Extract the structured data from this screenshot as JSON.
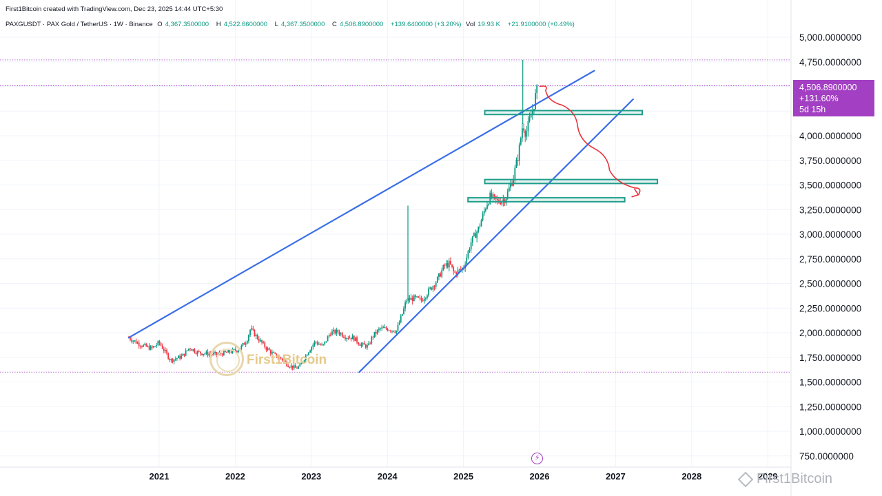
{
  "header": {
    "credit": "First1Bitcoin created with TradingView.com, Dec 23, 2025 14:44 UTC+5:30",
    "symbol": "PAXGUSDT · PAX Gold / TetherUS · 1W · Binance",
    "open_label": "O",
    "open": "4,367.3500000",
    "high_label": "H",
    "high": "4,522.6600000",
    "low_label": "L",
    "low": "4,367.3500000",
    "close_label": "C",
    "close": "4,506.8900000",
    "change": "+139.6400000 (+3.20%)",
    "vol_label": "Vol",
    "vol": "19.93 K",
    "vol_change": "+21.9100000 (+0.49%)"
  },
  "price_tag": {
    "price": "4,506.8900000",
    "change_pct": "+131.60%",
    "countdown": "5d 15h"
  },
  "watermark": {
    "center": "First1Bitcoin",
    "corner": "First1Bitcoin"
  },
  "icons": {
    "bolt": "lightning-icon",
    "logo": "coin-logo-icon",
    "corner": "diamond-icon"
  },
  "colors": {
    "up": "#089981",
    "down": "#f23645",
    "trendline": "#3a6ee8",
    "zone": "#1f9d8a",
    "projection": "#e8313a",
    "price_line": "#a23fc2"
  },
  "chart_data": {
    "type": "candlestick",
    "timeframe": "1W",
    "ylim": [
      650,
      5200
    ],
    "y_ticks": [
      "5,000.0000000",
      "4,750.0000000",
      "4,500.0000000",
      "4,250.0000000",
      "4,000.0000000",
      "3,750.0000000",
      "3,500.0000000",
      "3,250.0000000",
      "3,000.0000000",
      "2,750.0000000",
      "2,500.0000000",
      "2,250.0000000",
      "2,000.0000000",
      "1,750.0000000",
      "1,500.0000000",
      "1,250.0000000",
      "1,000.0000000",
      "750.0000000"
    ],
    "y_tick_values": [
      5000,
      4750,
      4500,
      4250,
      4000,
      3750,
      3500,
      3250,
      3000,
      2750,
      2500,
      2250,
      2000,
      1750,
      1500,
      1250,
      1000,
      750
    ],
    "x_ticks": [
      "2021",
      "2022",
      "2023",
      "2024",
      "2025",
      "2026",
      "2027",
      "2028",
      "2029"
    ],
    "x_tick_values": [
      2021,
      2022,
      2023,
      2024,
      2025,
      2026,
      2027,
      2028,
      2029
    ],
    "anchors": [
      [
        2020.6,
        1950
      ],
      [
        2020.75,
        1880
      ],
      [
        2020.9,
        1840
      ],
      [
        2021.0,
        1900
      ],
      [
        2021.15,
        1720
      ],
      [
        2021.3,
        1760
      ],
      [
        2021.4,
        1850
      ],
      [
        2021.5,
        1800
      ],
      [
        2021.6,
        1790
      ],
      [
        2021.75,
        1780
      ],
      [
        2021.9,
        1800
      ],
      [
        2022.05,
        1830
      ],
      [
        2022.15,
        1920
      ],
      [
        2022.2,
        2040
      ],
      [
        2022.3,
        1940
      ],
      [
        2022.4,
        1850
      ],
      [
        2022.5,
        1780
      ],
      [
        2022.6,
        1740
      ],
      [
        2022.7,
        1670
      ],
      [
        2022.8,
        1640
      ],
      [
        2022.85,
        1660
      ],
      [
        2022.95,
        1800
      ],
      [
        2023.05,
        1910
      ],
      [
        2023.15,
        1860
      ],
      [
        2023.25,
        2000
      ],
      [
        2023.35,
        2010
      ],
      [
        2023.45,
        1960
      ],
      [
        2023.55,
        1950
      ],
      [
        2023.65,
        1880
      ],
      [
        2023.75,
        1860
      ],
      [
        2023.8,
        1960
      ],
      [
        2023.9,
        2040
      ],
      [
        2024.0,
        2040
      ],
      [
        2024.12,
        2020
      ],
      [
        2024.2,
        2200
      ],
      [
        2024.25,
        2330
      ],
      [
        2024.35,
        2350
      ],
      [
        2024.45,
        2330
      ],
      [
        2024.55,
        2430
      ],
      [
        2024.65,
        2530
      ],
      [
        2024.75,
        2680
      ],
      [
        2024.82,
        2700
      ],
      [
        2024.88,
        2600
      ],
      [
        2025.0,
        2660
      ],
      [
        2025.1,
        2920
      ],
      [
        2025.2,
        3060
      ],
      [
        2025.3,
        3300
      ],
      [
        2025.35,
        3380
      ],
      [
        2025.45,
        3330
      ],
      [
        2025.55,
        3360
      ],
      [
        2025.65,
        3560
      ],
      [
        2025.72,
        3800
      ],
      [
        2025.78,
        4120
      ],
      [
        2025.82,
        4020
      ],
      [
        2025.88,
        4180
      ],
      [
        2025.93,
        4330
      ],
      [
        2025.97,
        4507
      ]
    ],
    "spikes": [
      {
        "x": 2024.27,
        "high": 3290
      },
      {
        "x": 2025.78,
        "high": 4770
      }
    ],
    "last_close": 4506.89,
    "horizontal_levels": [
      4770,
      4506.89,
      1600
    ],
    "trendlines": [
      {
        "x1": 2020.6,
        "y1": 1950,
        "x2": 2026.72,
        "y2": 4660
      },
      {
        "x1": 2023.63,
        "y1": 1600,
        "x2": 2027.23,
        "y2": 4370
      }
    ],
    "zones": [
      {
        "x1": 2025.28,
        "x2": 2027.35,
        "y_low": 4215,
        "y_high": 4255
      },
      {
        "x1": 2025.28,
        "x2": 2027.55,
        "y_low": 3515,
        "y_high": 3555
      },
      {
        "x1": 2025.06,
        "x2": 2027.12,
        "y_low": 3330,
        "y_high": 3370
      }
    ],
    "projection_path": [
      [
        2026.0,
        4500
      ],
      [
        2026.08,
        4460
      ],
      [
        2026.3,
        4310
      ],
      [
        2026.5,
        4100
      ],
      [
        2026.72,
        3870
      ],
      [
        2026.92,
        3650
      ],
      [
        2027.25,
        3470
      ],
      [
        2027.3,
        3400
      ]
    ]
  }
}
